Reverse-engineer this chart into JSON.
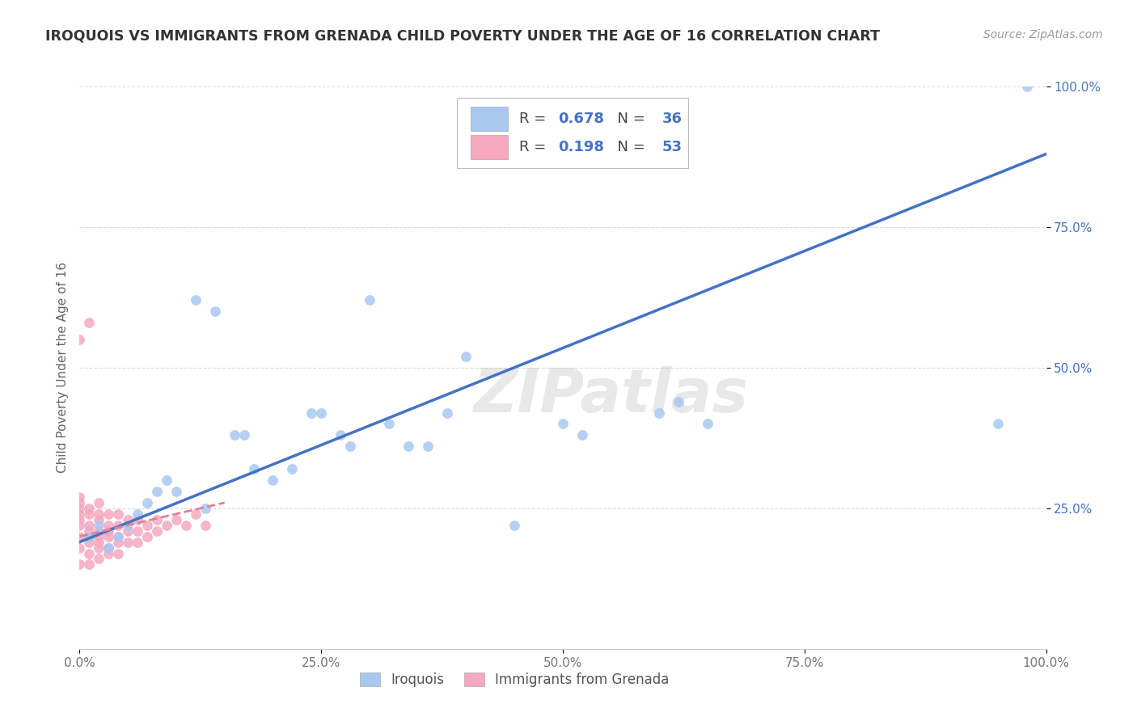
{
  "title": "IROQUOIS VS IMMIGRANTS FROM GRENADA CHILD POVERTY UNDER THE AGE OF 16 CORRELATION CHART",
  "source": "Source: ZipAtlas.com",
  "ylabel": "Child Poverty Under the Age of 16",
  "xlim": [
    0,
    1.0
  ],
  "ylim": [
    0,
    1.0
  ],
  "xtick_labels": [
    "0.0%",
    "25.0%",
    "50.0%",
    "75.0%",
    "100.0%"
  ],
  "xtick_vals": [
    0.0,
    0.25,
    0.5,
    0.75,
    1.0
  ],
  "ytick_labels": [
    "25.0%",
    "50.0%",
    "75.0%",
    "100.0%"
  ],
  "ytick_vals": [
    0.25,
    0.5,
    0.75,
    1.0
  ],
  "legend_label1": "Iroquois",
  "legend_label2": "Immigrants from Grenada",
  "R1": 0.678,
  "N1": 36,
  "R2": 0.198,
  "N2": 53,
  "color1": "#a8c8f0",
  "color2": "#f5a8c0",
  "line_color1": "#4472c4",
  "line_color2": "#e08090",
  "tick_color": "#4472c4",
  "watermark": "ZIPatlas",
  "background_color": "#ffffff",
  "grid_color": "#d8d8d8",
  "iroquois_x": [
    0.01,
    0.02,
    0.03,
    0.04,
    0.05,
    0.06,
    0.07,
    0.08,
    0.09,
    0.1,
    0.12,
    0.13,
    0.14,
    0.16,
    0.17,
    0.18,
    0.2,
    0.22,
    0.24,
    0.25,
    0.27,
    0.28,
    0.3,
    0.32,
    0.34,
    0.36,
    0.38,
    0.4,
    0.45,
    0.5,
    0.52,
    0.6,
    0.62,
    0.65,
    0.95,
    0.98
  ],
  "iroquois_y": [
    0.2,
    0.22,
    0.18,
    0.2,
    0.22,
    0.24,
    0.26,
    0.28,
    0.3,
    0.28,
    0.62,
    0.25,
    0.6,
    0.38,
    0.38,
    0.32,
    0.3,
    0.32,
    0.42,
    0.42,
    0.38,
    0.36,
    0.62,
    0.4,
    0.36,
    0.36,
    0.42,
    0.52,
    0.22,
    0.4,
    0.38,
    0.42,
    0.44,
    0.4,
    0.4,
    1.0
  ],
  "grenada_x": [
    0.0,
    0.0,
    0.0,
    0.0,
    0.0,
    0.0,
    0.0,
    0.0,
    0.0,
    0.0,
    0.01,
    0.01,
    0.01,
    0.01,
    0.01,
    0.01,
    0.01,
    0.01,
    0.01,
    0.02,
    0.02,
    0.02,
    0.02,
    0.02,
    0.02,
    0.02,
    0.02,
    0.03,
    0.03,
    0.03,
    0.03,
    0.03,
    0.03,
    0.04,
    0.04,
    0.04,
    0.04,
    0.04,
    0.05,
    0.05,
    0.05,
    0.06,
    0.06,
    0.06,
    0.07,
    0.07,
    0.08,
    0.08,
    0.09,
    0.1,
    0.11,
    0.12,
    0.13
  ],
  "grenada_y": [
    0.15,
    0.18,
    0.2,
    0.22,
    0.23,
    0.24,
    0.25,
    0.26,
    0.27,
    0.55,
    0.15,
    0.17,
    0.19,
    0.2,
    0.21,
    0.22,
    0.24,
    0.25,
    0.58,
    0.16,
    0.18,
    0.19,
    0.2,
    0.21,
    0.23,
    0.24,
    0.26,
    0.17,
    0.18,
    0.2,
    0.21,
    0.22,
    0.24,
    0.17,
    0.19,
    0.2,
    0.22,
    0.24,
    0.19,
    0.21,
    0.23,
    0.19,
    0.21,
    0.23,
    0.2,
    0.22,
    0.21,
    0.23,
    0.22,
    0.23,
    0.22,
    0.24,
    0.22
  ],
  "blue_line_x0": 0.0,
  "blue_line_y0": 0.19,
  "blue_line_x1": 1.0,
  "blue_line_y1": 0.88,
  "pink_line_x0": 0.0,
  "pink_line_y0": 0.2,
  "pink_line_x1": 0.15,
  "pink_line_y1": 0.26
}
